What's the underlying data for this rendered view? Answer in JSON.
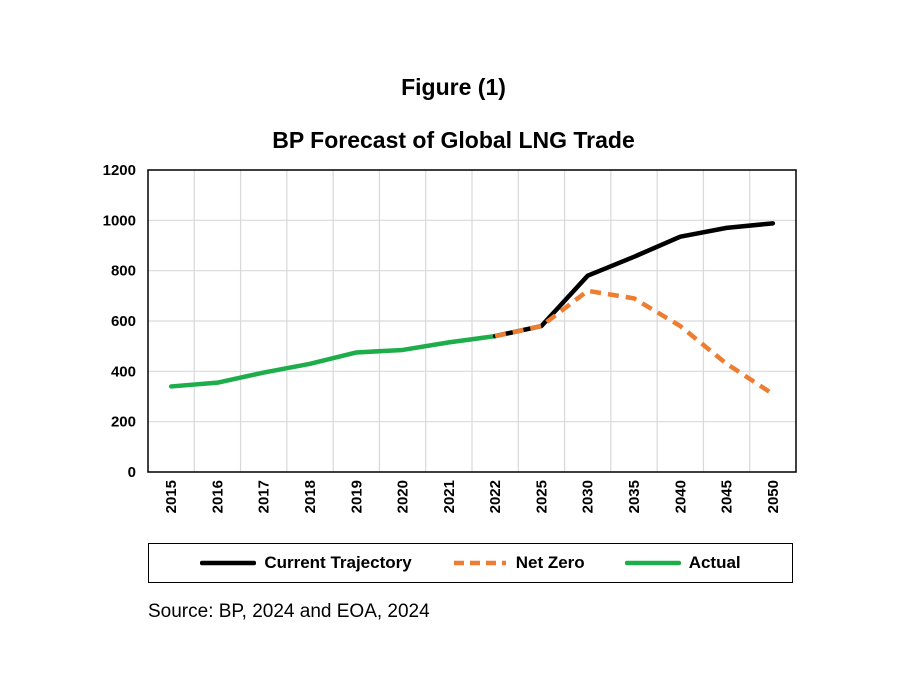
{
  "figure_label": "Figure (1)",
  "chart_data": {
    "type": "line",
    "title": "BP Forecast of Global LNG Trade",
    "xlabel": "",
    "ylabel": "",
    "categories": [
      "2015",
      "2016",
      "2017",
      "2018",
      "2019",
      "2020",
      "2021",
      "2022",
      "2025",
      "2030",
      "2035",
      "2040",
      "2045",
      "2050"
    ],
    "ylim": [
      0,
      1200
    ],
    "yticks": [
      0,
      200,
      400,
      600,
      800,
      1000,
      1200
    ],
    "grid": true,
    "legend_position": "bottom",
    "series": [
      {
        "name": "Current Trajectory",
        "color": "#000000",
        "dashed": false,
        "values": [
          null,
          null,
          null,
          null,
          null,
          null,
          null,
          540,
          580,
          780,
          855,
          935,
          970,
          988
        ]
      },
      {
        "name": "Net Zero",
        "color": "#ED7D31",
        "dashed": true,
        "values": [
          null,
          null,
          null,
          null,
          null,
          null,
          null,
          540,
          580,
          720,
          690,
          580,
          430,
          310
        ]
      },
      {
        "name": "Actual",
        "color": "#1EAD4B",
        "dashed": false,
        "values": [
          340,
          355,
          395,
          430,
          475,
          485,
          515,
          540,
          null,
          null,
          null,
          null,
          null,
          null
        ]
      }
    ]
  },
  "source_text": "Source: BP, 2024 and EOA, 2024"
}
